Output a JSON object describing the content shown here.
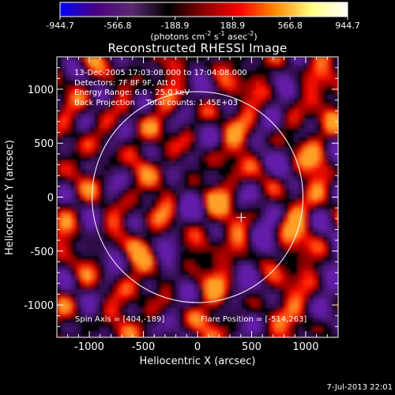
{
  "colorbar": {
    "ticks": [
      "-944.7",
      "-566.8",
      "-188.9",
      "188.9",
      "566.8",
      "944.7"
    ],
    "range": [
      -944.7,
      944.7
    ],
    "units_text": "(photons cm",
    "units_exp1": "-2",
    "units_mid": " s",
    "units_exp2": "-1",
    "units_mid2": " asec",
    "units_exp3": "-2",
    "units_close": ")",
    "stops": [
      "#0000ff",
      "#4b0082",
      "#5a2a70",
      "#000000",
      "#8b0000",
      "#ff0000",
      "#ff8c00",
      "#ffff80",
      "#ffffff"
    ]
  },
  "title": "Reconstructed RHESSI Image",
  "info": {
    "line1": "13-Dec-2005 17:03:08.000 to 17:04:08.000",
    "line2": "Detectors: 7F 8F 9F, Att 0",
    "line3": "Energy Range: 6.0 - 25.0 keV",
    "line4a": "Back Projection",
    "line4b": "Total counts: 1.45E+03",
    "spin_axis": "Spin Axis = [404,-189]",
    "flare_position": "Flare Position = [-514,263]"
  },
  "chart_data": {
    "type": "heatmap",
    "title": "Reconstructed RHESSI Image",
    "xlabel": "Heliocentric X (arcsec)",
    "ylabel": "Heliocentric Y (arcsec)",
    "xlim": [
      -1300,
      1300
    ],
    "ylim": [
      -1300,
      1300
    ],
    "xticks": [
      -1000,
      -500,
      0,
      500,
      1000
    ],
    "yticks": [
      -1000,
      -500,
      0,
      500,
      1000
    ],
    "xtick_labels": [
      "-1000",
      "-500",
      "0",
      "500",
      "1000"
    ],
    "ytick_labels": [
      "-1000",
      "-500",
      "0",
      "500",
      "1000"
    ],
    "solar_disk_radius": 975,
    "spin_axis": [
      404,
      -189
    ],
    "colorscale_range": [
      -944.7,
      944.7
    ]
  },
  "footer": {
    "date": "7-Jul-2013 22:01"
  }
}
